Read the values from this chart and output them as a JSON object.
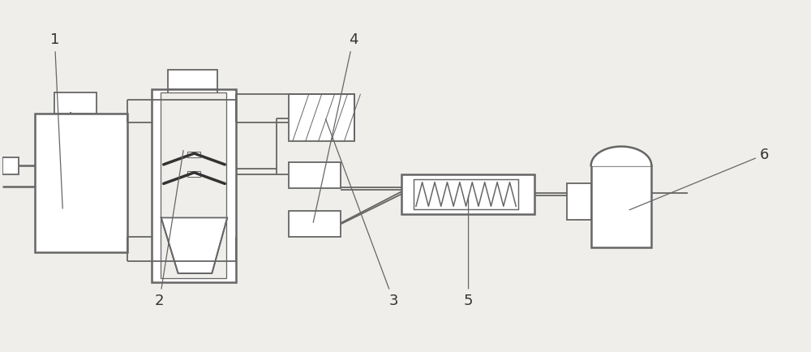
{
  "bg_color": "#f0eeea",
  "line_color": "#666666",
  "dark_color": "#333333",
  "label_color": "#333333",
  "lw_main": 1.3,
  "lw_thick": 1.8
}
